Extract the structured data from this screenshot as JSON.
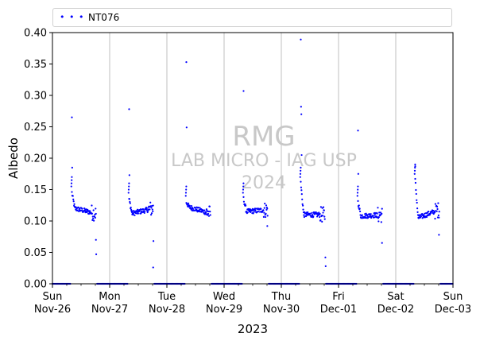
{
  "chart_data": {
    "type": "scatter",
    "series": [
      {
        "name": "NT076",
        "color": "#0000ff"
      }
    ],
    "xlabel": "2023",
    "ylabel": "Albedo",
    "ylim": [
      0,
      0.4
    ],
    "yticks": [
      "0.00",
      "0.05",
      "0.10",
      "0.15",
      "0.20",
      "0.25",
      "0.30",
      "0.35",
      "0.40"
    ],
    "xlim": [
      "2023-11-26",
      "2023-12-03"
    ],
    "xticks": [
      {
        "day": "Sun",
        "date": "Nov-26"
      },
      {
        "day": "Mon",
        "date": "Nov-27"
      },
      {
        "day": "Tue",
        "date": "Nov-28"
      },
      {
        "day": "Wed",
        "date": "Nov-29"
      },
      {
        "day": "Thu",
        "date": "Nov-30"
      },
      {
        "day": "Fri",
        "date": "Dec-01"
      },
      {
        "day": "Sat",
        "date": "Dec-02"
      },
      {
        "day": "Sun",
        "date": "Dec-03"
      }
    ],
    "grid": "vertical",
    "legend_position": "top",
    "daily_profiles": [
      {
        "date": "2023-11-26",
        "start_value": 0.145,
        "plateau": 0.12,
        "end_value": 0.112,
        "outliers": [
          0.265,
          0.185,
          0.07,
          0.047
        ]
      },
      {
        "date": "2023-11-27",
        "start_value": 0.135,
        "plateau": 0.112,
        "end_value": 0.12,
        "outliers": [
          0.278,
          0.173,
          0.026,
          0.068
        ]
      },
      {
        "date": "2023-11-28",
        "start_value": 0.13,
        "plateau": 0.122,
        "end_value": 0.112,
        "outliers": [
          0.353,
          0.249
        ]
      },
      {
        "date": "2023-11-29",
        "start_value": 0.135,
        "plateau": 0.115,
        "end_value": 0.118,
        "outliers": [
          0.307,
          0.092
        ]
      },
      {
        "date": "2023-11-30",
        "start_value": 0.16,
        "plateau": 0.11,
        "end_value": 0.11,
        "outliers": [
          0.389,
          0.282,
          0.27,
          0.205,
          0.042,
          0.028
        ]
      },
      {
        "date": "2023-12-01",
        "start_value": 0.13,
        "plateau": 0.108,
        "end_value": 0.11,
        "outliers": [
          0.244,
          0.175,
          0.065
        ]
      },
      {
        "date": "2023-12-02",
        "start_value": 0.165,
        "plateau": 0.105,
        "end_value": 0.118,
        "outliers": [
          0.187,
          0.078
        ]
      }
    ],
    "night_value": 0.0
  },
  "watermark": {
    "line1": "RMG",
    "line2": "LAB MICRO - IAG USP",
    "line3": "2024"
  },
  "legend": {
    "marker": "• • •",
    "label": "NT076"
  }
}
